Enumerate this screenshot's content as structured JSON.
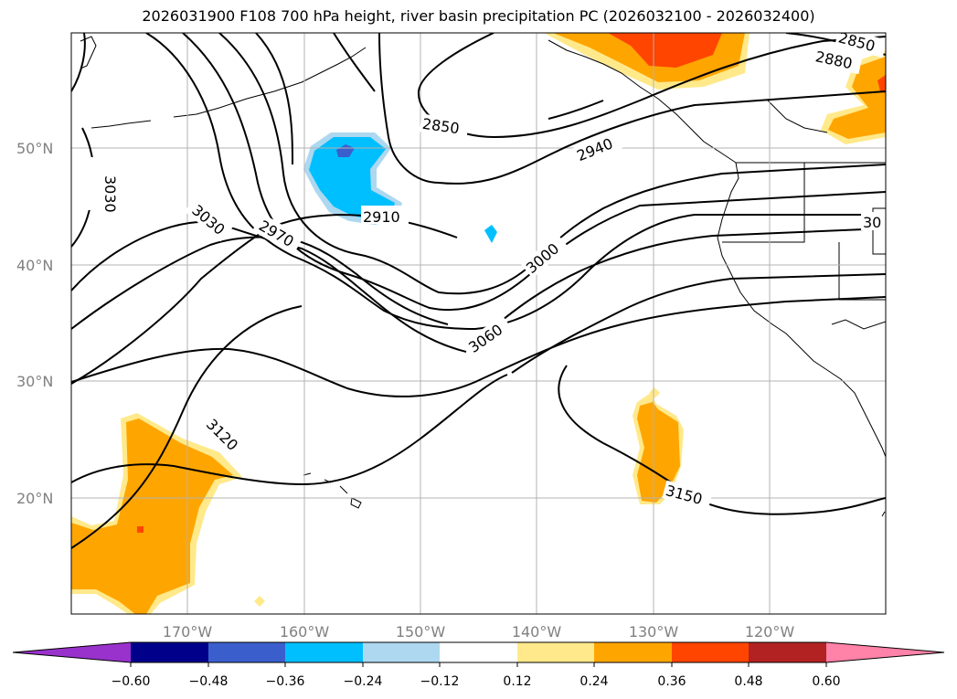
{
  "title": "2026031900 F108 700 hPa height, river basin precipitation PC (2026032100 - 2026032400)",
  "map": {
    "lat_labels": [
      "50°N",
      "40°N",
      "30°N",
      "20°N"
    ],
    "lon_labels": [
      "170°W",
      "160°W",
      "150°W",
      "140°W",
      "130°W",
      "120°W"
    ],
    "contour_labels": [
      "3030",
      "3030",
      "2970",
      "2910",
      "2850",
      "2940",
      "3000",
      "3060",
      "3120",
      "3150",
      "2880",
      "2850",
      "30"
    ]
  },
  "colorbar": {
    "colors": [
      "#9932cc",
      "#00008b",
      "#3a5fcd",
      "#00bfff",
      "#add8f0",
      "#ffffff",
      "#ffe98a",
      "#ffa500",
      "#ff4500",
      "#b22222",
      "#ff82a8"
    ],
    "tick_labels": [
      "−0.60",
      "−0.48",
      "−0.36",
      "−0.24",
      "−0.12",
      "0.12",
      "0.24",
      "0.36",
      "0.48",
      "0.60"
    ]
  }
}
